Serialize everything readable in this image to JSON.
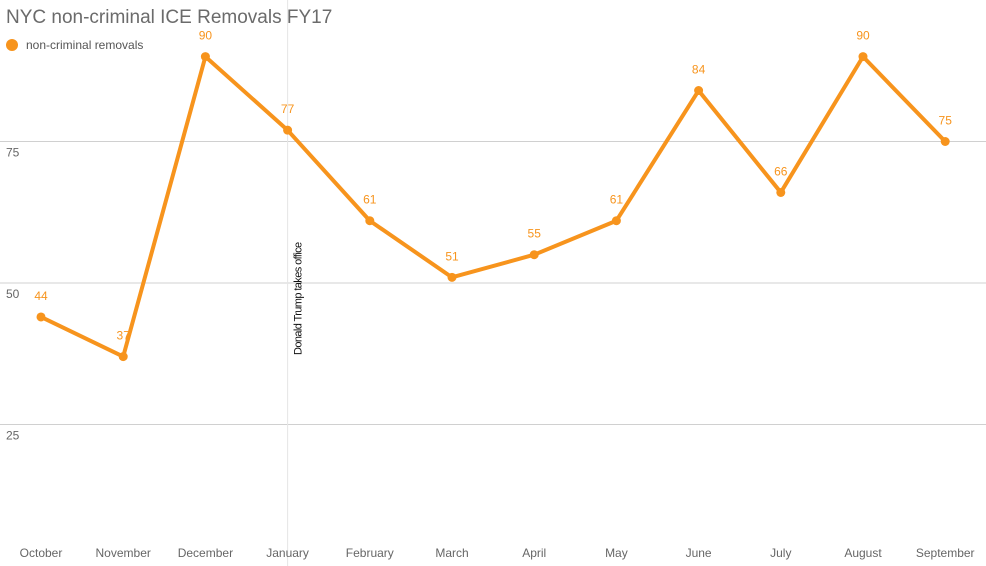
{
  "chart_data": {
    "type": "line",
    "title": "NYC non-criminal ICE Removals FY17",
    "categories": [
      "October",
      "November",
      "December",
      "January",
      "February",
      "March",
      "April",
      "May",
      "June",
      "July",
      "August",
      "September"
    ],
    "series": [
      {
        "name": "non-criminal removals",
        "color": "#f7941d",
        "values": [
          44,
          37,
          90,
          77,
          61,
          51,
          55,
          61,
          84,
          66,
          90,
          75
        ]
      }
    ],
    "y_ticks": [
      25,
      50,
      75
    ],
    "ylim": [
      0,
      100
    ],
    "grid": true,
    "legend": "top-left",
    "annotation": {
      "category": "January",
      "text": "Donald Trump takes office"
    }
  }
}
